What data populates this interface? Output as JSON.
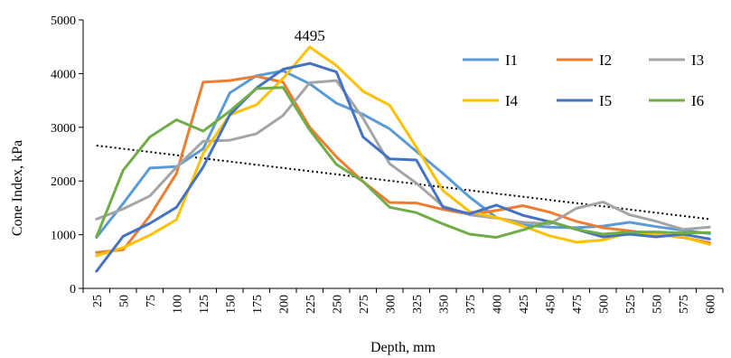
{
  "chart_data": {
    "type": "line",
    "xlabel": "Depth, mm",
    "ylabel": "Cone Index, kPa",
    "x": [
      25,
      50,
      75,
      100,
      125,
      150,
      175,
      200,
      225,
      250,
      275,
      300,
      325,
      350,
      375,
      400,
      425,
      450,
      475,
      500,
      525,
      550,
      575,
      600
    ],
    "ylim": [
      0,
      5000
    ],
    "yticks": [
      0,
      1000,
      2000,
      3000,
      4000,
      5000
    ],
    "grid": false,
    "legend_position": "top-right",
    "annotation": {
      "text": "4495",
      "x": 225,
      "y": 4495
    },
    "trendline": {
      "style": "dotted",
      "color": "#000000",
      "x": [
        25,
        600
      ],
      "y": [
        2660,
        1290
      ]
    },
    "series": [
      {
        "name": "I1",
        "color": "#5B9BD5",
        "values": [
          950,
          1580,
          2240,
          2270,
          2600,
          3640,
          3960,
          4050,
          3810,
          3450,
          3240,
          2970,
          2550,
          2140,
          1700,
          1320,
          1180,
          1140,
          1130,
          1160,
          1230,
          1150,
          1080,
          1020
        ]
      },
      {
        "name": "I2",
        "color": "#ED7D31",
        "values": [
          670,
          720,
          1350,
          2140,
          3840,
          3870,
          3950,
          3840,
          3000,
          2450,
          1990,
          1600,
          1590,
          1470,
          1380,
          1450,
          1540,
          1420,
          1250,
          1130,
          1070,
          1010,
          950,
          850
        ]
      },
      {
        "name": "I3",
        "color": "#A5A5A5",
        "values": [
          1290,
          1480,
          1720,
          2260,
          2740,
          2760,
          2880,
          3220,
          3830,
          3870,
          3170,
          2320,
          1960,
          1530,
          1370,
          1310,
          1230,
          1200,
          1490,
          1610,
          1370,
          1250,
          1100,
          1140
        ]
      },
      {
        "name": "I4",
        "color": "#FFC000",
        "values": [
          610,
          760,
          990,
          1280,
          2510,
          3230,
          3420,
          3910,
          4495,
          4150,
          3670,
          3410,
          2630,
          1820,
          1430,
          1320,
          1160,
          980,
          860,
          900,
          1040,
          1010,
          960,
          820
        ]
      },
      {
        "name": "I5",
        "color": "#4472C4",
        "values": [
          320,
          970,
          1210,
          1510,
          2260,
          3230,
          3730,
          4080,
          4190,
          4030,
          2820,
          2410,
          2390,
          1510,
          1390,
          1550,
          1360,
          1240,
          1100,
          960,
          1010,
          960,
          1010,
          920
        ]
      },
      {
        "name": "I6",
        "color": "#70AD47",
        "values": [
          960,
          2200,
          2820,
          3140,
          2930,
          3300,
          3720,
          3740,
          2950,
          2310,
          1990,
          1510,
          1410,
          1200,
          1010,
          950,
          1090,
          1250,
          1100,
          1010,
          1050,
          1050,
          1030,
          1040
        ]
      }
    ]
  }
}
